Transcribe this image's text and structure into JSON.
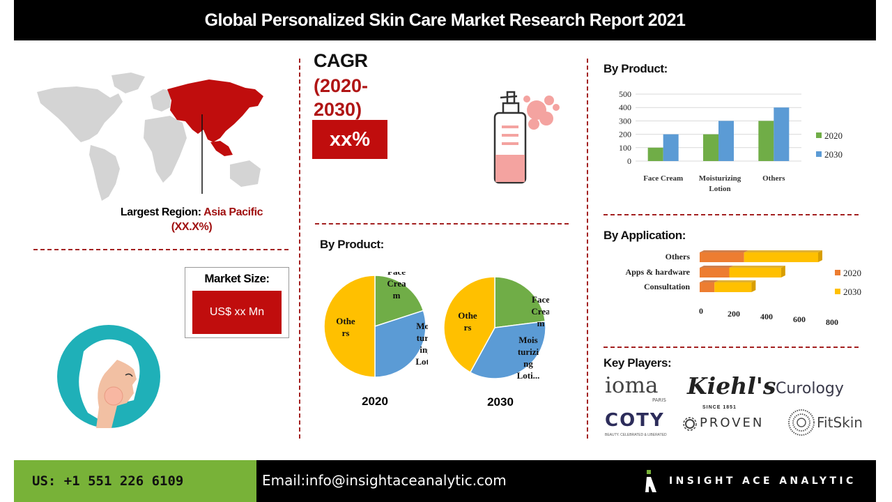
{
  "header": {
    "title": "Global Personalized Skin Care Market Research Report 2021"
  },
  "region": {
    "label": "Largest Region:",
    "value": "Asia Pacific (XX.X%)"
  },
  "cagr": {
    "title": "CAGR",
    "period": "(2020-2030)",
    "value": "xx%"
  },
  "market_size": {
    "title": "Market Size:",
    "value": "US$  xx Mn"
  },
  "product_bar": {
    "title": "By Product:"
  },
  "pie_section": {
    "title": "By Product:"
  },
  "application": {
    "title": "By Application:"
  },
  "key_players": {
    "title": "Key Players:",
    "logos": [
      {
        "name": "ioma",
        "sub": "PARIS"
      },
      {
        "name": "Kiehl's",
        "sub": "SINCE 1851"
      },
      {
        "name": "Curology"
      },
      {
        "name": "COTY",
        "sub": "BEAUTY. CELEBRATED & LIBERATED"
      },
      {
        "name": "PROVEN"
      },
      {
        "name": "FitSkin"
      }
    ]
  },
  "footer": {
    "phone": "US: +1 551 226 6109",
    "email": "Email:info@insightaceanalytic.com",
    "brand": "INSIGHT ACE ANALYTIC"
  },
  "colors": {
    "green": "#70ad47",
    "blue": "#5b9bd5",
    "yellow": "#ffc000",
    "orange": "#ed7d31",
    "red": "#c00d0d"
  },
  "chart_data": [
    {
      "type": "bar",
      "title": "By Product:",
      "categories": [
        "Face Cream",
        "Moisturizing Lotion",
        "Others"
      ],
      "series": [
        {
          "name": "2020",
          "values": [
            100,
            200,
            300
          ]
        },
        {
          "name": "2030",
          "values": [
            200,
            300,
            400
          ]
        }
      ],
      "yticks": [
        "500",
        "400",
        "300",
        "200",
        "100",
        "0"
      ],
      "ylim": [
        0,
        500
      ],
      "legend": "right"
    },
    {
      "type": "pie",
      "xlabel": "2020",
      "labels": [
        "Face Cream",
        "Moisturizing Lotion",
        "Others"
      ],
      "values": [
        20,
        30,
        50
      ]
    },
    {
      "type": "pie",
      "xlabel": "2030",
      "labels": [
        "Face Cream",
        "Moisturizing Lotion",
        "Others"
      ],
      "values": [
        23,
        35,
        42
      ]
    },
    {
      "type": "bar",
      "orientation": "horizontal",
      "stacked": true,
      "title": "By Application:",
      "categories": [
        "Others",
        "Apps & hardware",
        "Consultation"
      ],
      "series": [
        {
          "name": "2020",
          "values": [
            300,
            200,
            100
          ]
        },
        {
          "name": "2030",
          "values": [
            500,
            350,
            250
          ]
        }
      ],
      "xticks": [
        "0",
        "200",
        "400",
        "600",
        "800"
      ],
      "xlim": [
        0,
        800
      ],
      "legend": "right"
    }
  ]
}
